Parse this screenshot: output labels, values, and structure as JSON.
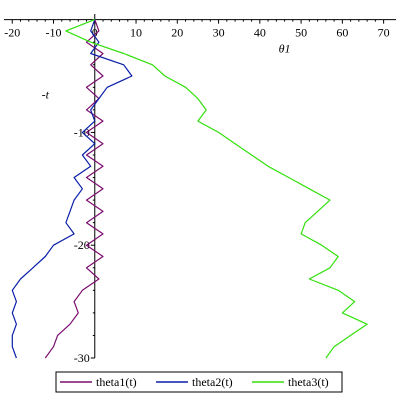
{
  "chart_data": {
    "type": "line",
    "xlabel": "θ1",
    "ylabel": "-t",
    "xlim": [
      -22,
      73
    ],
    "ylim": [
      -30,
      0.5
    ],
    "x_ticks": [
      -20,
      -10,
      0,
      10,
      20,
      30,
      40,
      50,
      60,
      70
    ],
    "x_tick_labels": [
      "-20",
      "-10",
      "0",
      "10",
      "20",
      "30",
      "40",
      "50",
      "60",
      "70"
    ],
    "y_ticks": [
      -10,
      -20,
      -30
    ],
    "y_tick_labels": [
      "-10",
      "-20",
      "-30"
    ],
    "grid": false,
    "legend_position": "bottom",
    "series": [
      {
        "name": "theta1(t)",
        "color": "#7b0d6e",
        "points": [
          [
            0,
            0
          ],
          [
            1,
            -1
          ],
          [
            -2,
            -2
          ],
          [
            2,
            -3
          ],
          [
            -1,
            -4
          ],
          [
            2,
            -5
          ],
          [
            -2,
            -6
          ],
          [
            1,
            -7
          ],
          [
            -2,
            -8
          ],
          [
            2,
            -9
          ],
          [
            -2,
            -10
          ],
          [
            2,
            -11
          ],
          [
            -2,
            -12
          ],
          [
            2,
            -13
          ],
          [
            -2,
            -14
          ],
          [
            2,
            -15
          ],
          [
            -2,
            -16
          ],
          [
            2,
            -17
          ],
          [
            -2,
            -18
          ],
          [
            2,
            -19
          ],
          [
            -2,
            -20
          ],
          [
            2,
            -21
          ],
          [
            -2,
            -22
          ],
          [
            1,
            -23
          ],
          [
            -3,
            -24
          ],
          [
            -5,
            -25
          ],
          [
            -4,
            -26
          ],
          [
            -6,
            -27
          ],
          [
            -9,
            -28
          ],
          [
            -10,
            -29
          ],
          [
            -12,
            -30
          ]
        ]
      },
      {
        "name": "theta2(t)",
        "color": "#0a1fa8",
        "points": [
          [
            0,
            0
          ],
          [
            -1,
            -1
          ],
          [
            1,
            -2
          ],
          [
            -1,
            -3
          ],
          [
            7,
            -4
          ],
          [
            9,
            -5
          ],
          [
            3,
            -6
          ],
          [
            1,
            -7
          ],
          [
            -1,
            -8
          ],
          [
            0,
            -9
          ],
          [
            -3,
            -10
          ],
          [
            0,
            -11
          ],
          [
            -3,
            -12
          ],
          [
            -1,
            -13
          ],
          [
            -5,
            -14
          ],
          [
            -3,
            -15
          ],
          [
            -5,
            -16
          ],
          [
            -6,
            -17
          ],
          [
            -7,
            -18
          ],
          [
            -5,
            -19
          ],
          [
            -10,
            -20
          ],
          [
            -12,
            -21
          ],
          [
            -15,
            -22
          ],
          [
            -18,
            -23
          ],
          [
            -20,
            -24
          ],
          [
            -19,
            -25
          ],
          [
            -20,
            -26
          ],
          [
            -19,
            -27
          ],
          [
            -20,
            -28
          ],
          [
            -20,
            -29
          ],
          [
            -19,
            -30
          ]
        ]
      },
      {
        "name": "theta3(t)",
        "color": "#33e00d",
        "points": [
          [
            0,
            0
          ],
          [
            -7,
            -1
          ],
          [
            -1,
            -2
          ],
          [
            7,
            -3
          ],
          [
            14,
            -4
          ],
          [
            17,
            -5
          ],
          [
            22,
            -6
          ],
          [
            25,
            -7
          ],
          [
            27,
            -8
          ],
          [
            25,
            -9
          ],
          [
            30,
            -10
          ],
          [
            34,
            -11
          ],
          [
            38,
            -12
          ],
          [
            42,
            -13
          ],
          [
            47,
            -14
          ],
          [
            52,
            -15
          ],
          [
            57,
            -16
          ],
          [
            54,
            -17
          ],
          [
            51,
            -18
          ],
          [
            50,
            -19
          ],
          [
            55,
            -20
          ],
          [
            59,
            -21
          ],
          [
            57,
            -22
          ],
          [
            52,
            -23
          ],
          [
            59,
            -24
          ],
          [
            63,
            -25
          ],
          [
            60,
            -26
          ],
          [
            66,
            -27
          ],
          [
            62,
            -28
          ],
          [
            58,
            -29
          ],
          [
            56,
            -30
          ]
        ]
      }
    ]
  }
}
